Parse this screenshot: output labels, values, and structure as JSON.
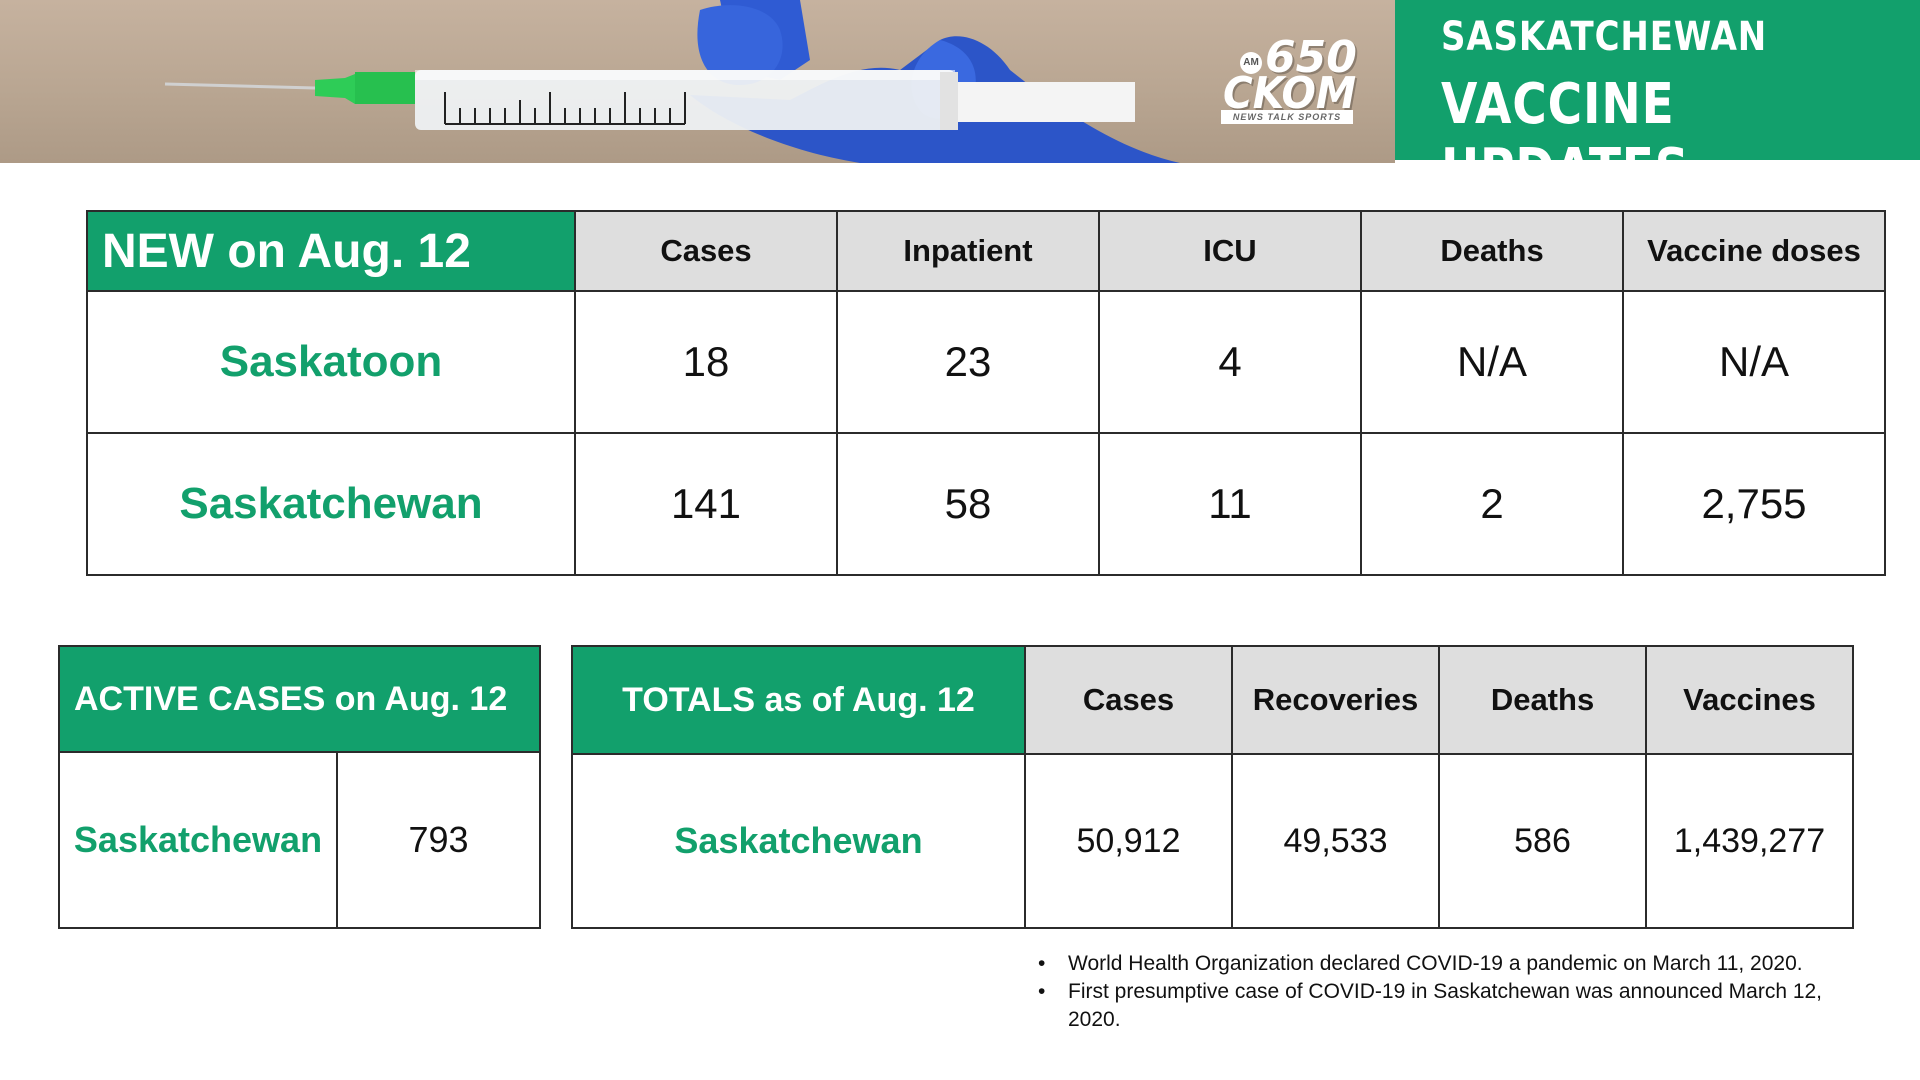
{
  "banner": {
    "line1": "SASKATCHEWAN",
    "line2": "VACCINE UPDATES",
    "logo": {
      "am": "AM",
      "frequency": "650",
      "callsign": "CKOM",
      "tagline": "NEWS TALK SPORTS"
    },
    "photo_icon": "syringe-in-gloved-hand",
    "colors": {
      "brand_green": "#12a06c"
    }
  },
  "new_table": {
    "title": "NEW on Aug. 12",
    "columns": [
      "Cases",
      "Inpatient",
      "ICU",
      "Deaths",
      "Vaccine doses"
    ],
    "rows": [
      {
        "label": "Saskatoon",
        "values": [
          "18",
          "23",
          "4",
          "N/A",
          "N/A"
        ]
      },
      {
        "label": "Saskatchewan",
        "values": [
          "141",
          "58",
          "11",
          "2",
          "2,755"
        ]
      }
    ]
  },
  "active_table": {
    "title": "ACTIVE CASES on Aug. 12",
    "row": {
      "label": "Saskatchewan",
      "value": "793"
    }
  },
  "totals_table": {
    "title": "TOTALS as of Aug. 12",
    "columns": [
      "Cases",
      "Recoveries",
      "Deaths",
      "Vaccines"
    ],
    "row": {
      "label": "Saskatchewan",
      "values": [
        "50,912",
        "49,533",
        "586",
        "1,439,277"
      ]
    }
  },
  "notes": [
    "World Health Organization declared COVID-19 a pandemic on March 11, 2020.",
    "First presumptive case of COVID-19 in Saskatchewan was announced March 12, 2020."
  ]
}
